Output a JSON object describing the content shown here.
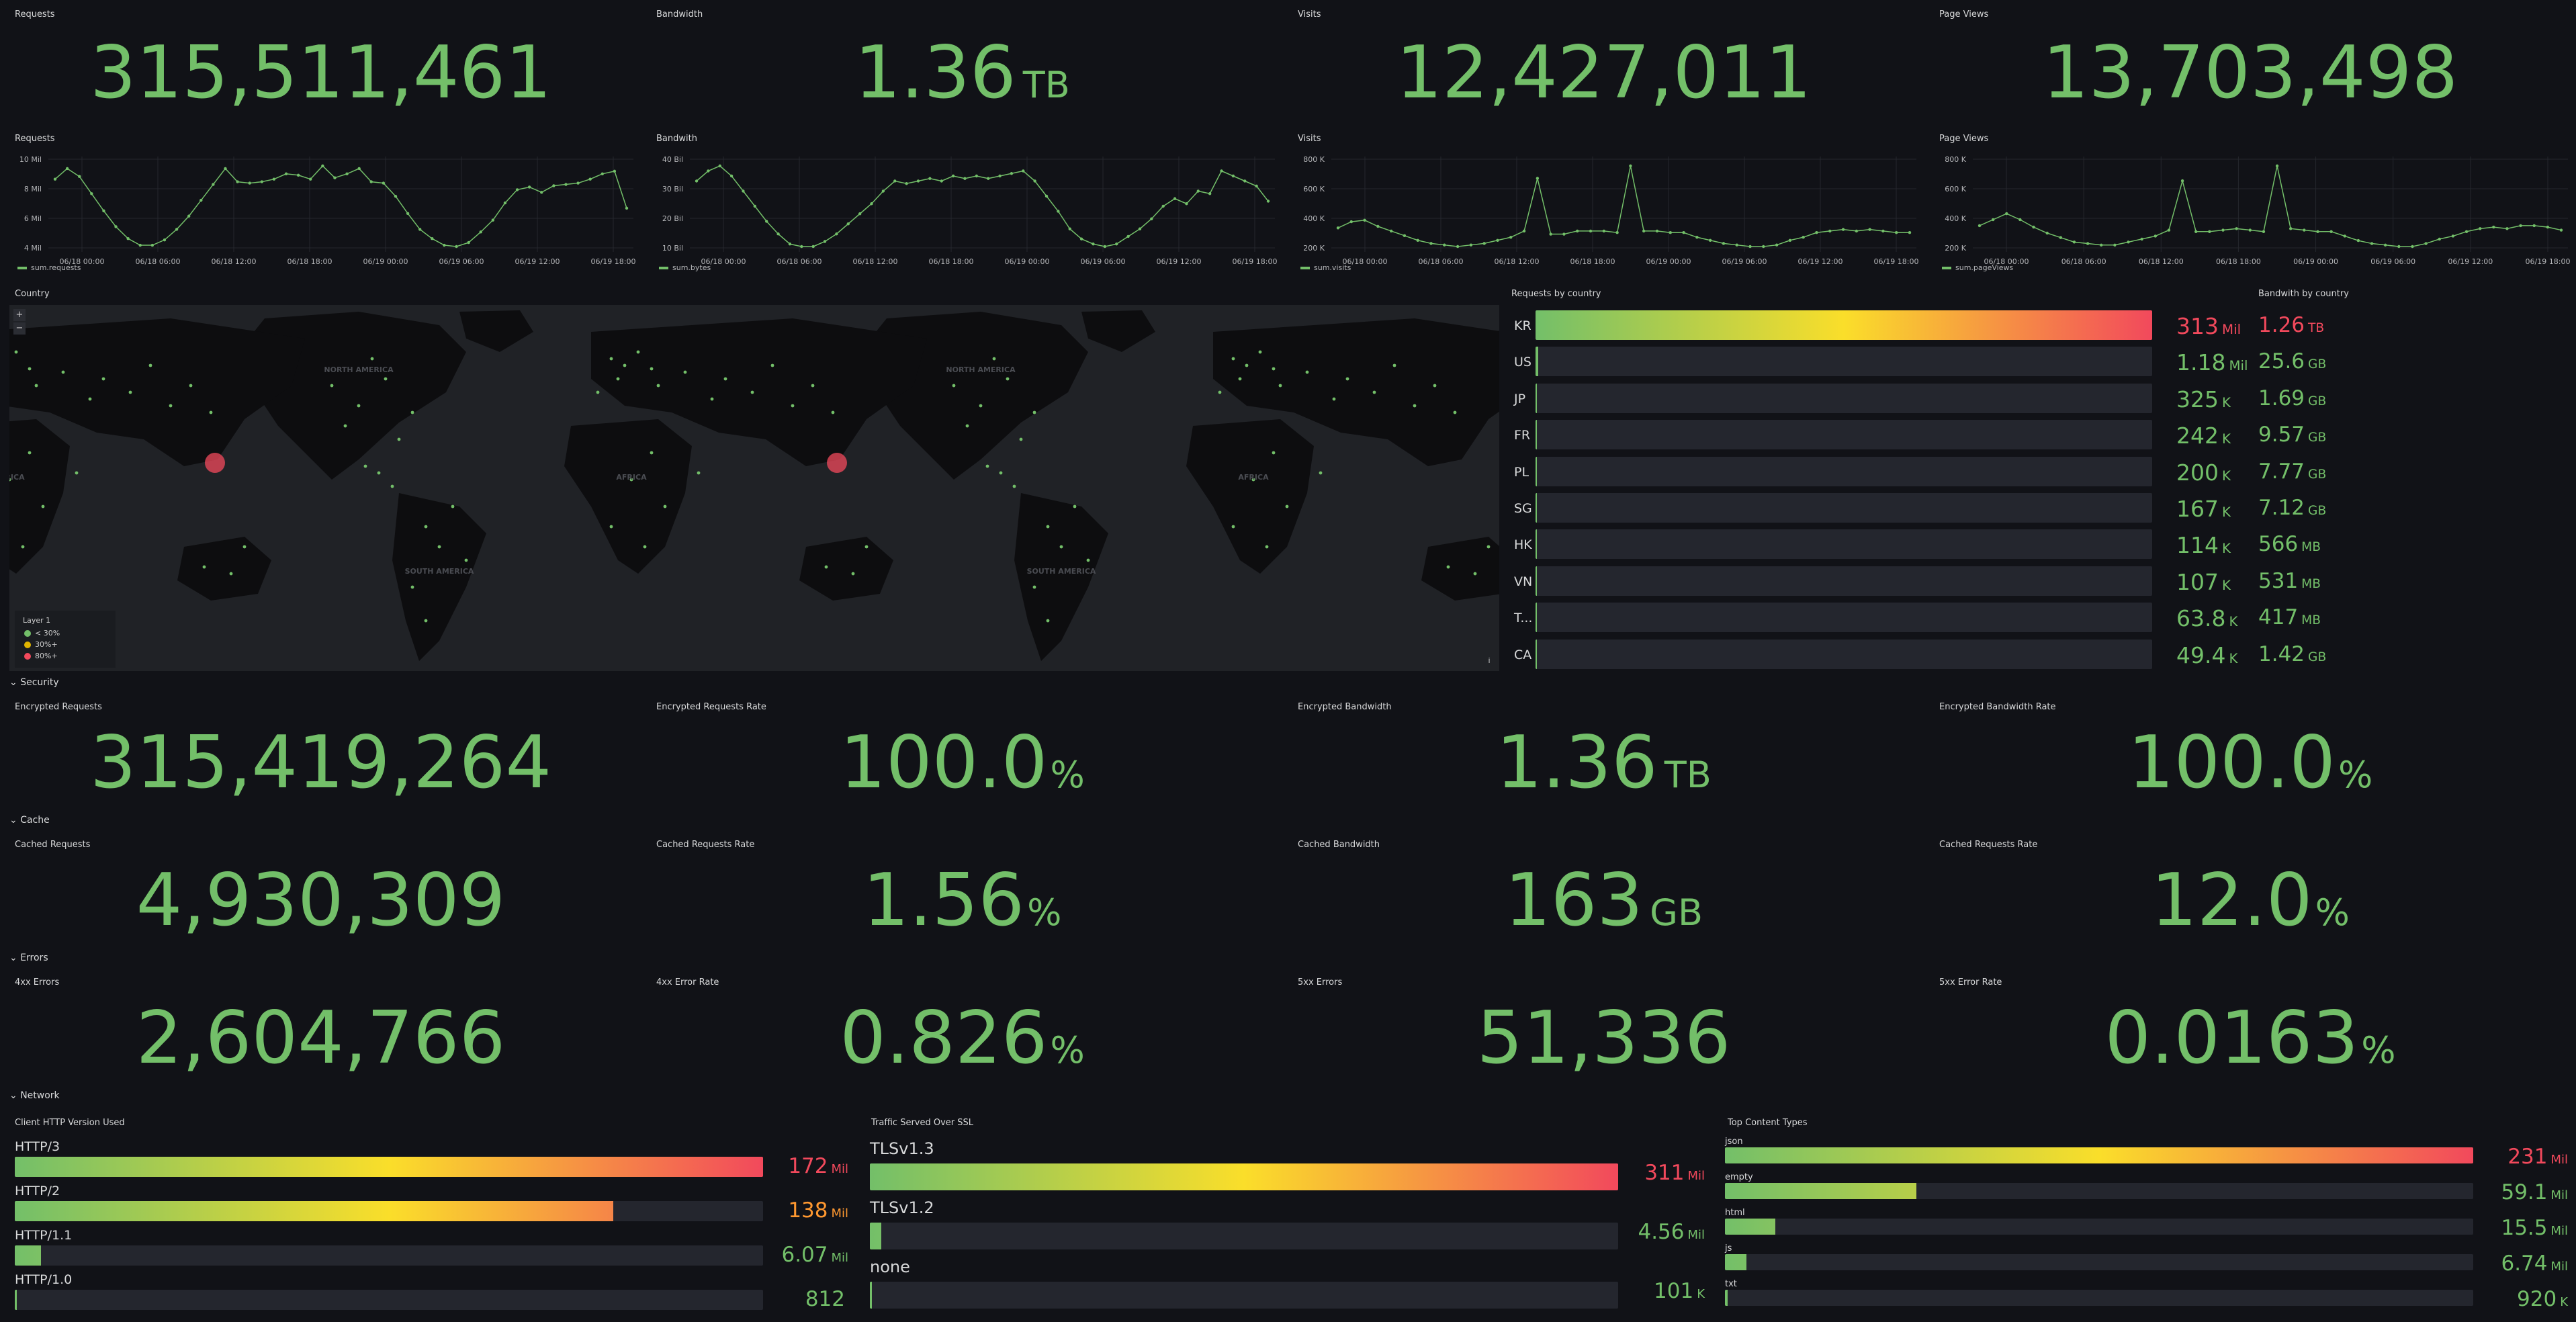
{
  "top_stats": [
    {
      "title": "Requests",
      "value": "315,511,461",
      "unit": ""
    },
    {
      "title": "Bandwidth",
      "value": "1.36",
      "unit": "TB"
    },
    {
      "title": "Visits",
      "value": "12,427,011",
      "unit": ""
    },
    {
      "title": "Page Views",
      "value": "13,703,498",
      "unit": ""
    }
  ],
  "timeseries": [
    {
      "title": "Requests",
      "legend": "sum.requests",
      "yticks": [
        "10 Mil",
        "8 Mil",
        "6 Mil",
        "4 Mil"
      ],
      "values": [
        8.6,
        9.4,
        8.8,
        7.5,
        6.2,
        5.0,
        4.1,
        3.6,
        3.6,
        4.0,
        4.8,
        5.8,
        7.0,
        8.2,
        9.4,
        8.4,
        8.3,
        8.4,
        8.6,
        9.0,
        8.9,
        8.6,
        9.6,
        8.7,
        9.0,
        9.4,
        8.4,
        8.3,
        7.3,
        6.0,
        4.8,
        4.1,
        3.6,
        3.5,
        3.8,
        4.6,
        5.5,
        6.8,
        7.8,
        8.0,
        7.6,
        8.1,
        8.2,
        8.3,
        8.6,
        9.0,
        9.2,
        6.4
      ]
    },
    {
      "title": "Bandwith",
      "legend": "sum.bytes",
      "yticks": [
        "40 Bil",
        "30 Bil",
        "20 Bil",
        "10 Bil"
      ],
      "values": [
        36,
        40,
        42,
        38,
        32,
        26,
        20,
        15,
        11,
        10,
        10,
        12,
        15,
        19,
        23,
        27,
        32,
        36,
        35,
        36,
        37,
        36,
        38,
        37,
        38,
        37,
        38,
        39,
        40,
        36,
        30,
        24,
        17,
        13,
        11,
        10,
        11,
        14,
        17,
        21,
        26,
        29,
        27,
        32,
        31,
        40,
        38,
        36,
        34,
        28
      ]
    },
    {
      "title": "Visits",
      "legend": "sum.visits",
      "yticks": [
        "800 K",
        "600 K",
        "400 K",
        "200 K"
      ],
      "values": [
        320,
        360,
        370,
        330,
        300,
        270,
        240,
        220,
        210,
        200,
        210,
        220,
        240,
        260,
        300,
        640,
        280,
        280,
        300,
        300,
        300,
        290,
        720,
        300,
        300,
        290,
        290,
        260,
        240,
        220,
        210,
        200,
        200,
        210,
        240,
        260,
        290,
        300,
        310,
        300,
        310,
        300,
        290,
        290
      ]
    },
    {
      "title": "Page Views",
      "legend": "sum.pageViews",
      "yticks": [
        "800 K",
        "600 K",
        "400 K",
        "200 K"
      ],
      "values": [
        340,
        380,
        420,
        380,
        330,
        290,
        260,
        230,
        220,
        210,
        210,
        230,
        250,
        270,
        310,
        640,
        300,
        300,
        310,
        320,
        310,
        300,
        740,
        320,
        310,
        300,
        300,
        270,
        240,
        220,
        210,
        200,
        200,
        220,
        250,
        270,
        300,
        320,
        330,
        320,
        340,
        340,
        330,
        310
      ]
    }
  ],
  "ts_xlabels": [
    "06/18 00:00",
    "06/18 06:00",
    "06/18 12:00",
    "06/18 18:00",
    "06/19 00:00",
    "06/19 06:00",
    "06/19 12:00",
    "06/19 18:00"
  ],
  "map": {
    "title": "Country",
    "legend_title": "Layer 1",
    "legend_items": [
      "< 30%",
      "30%+",
      "80%+"
    ],
    "legend_colors": [
      "#73bf69",
      "#e0b400",
      "#f2495c"
    ],
    "continents": [
      "NORTH AMERICA",
      "AFRICA",
      "SOUTH AMERICA"
    ],
    "zoom_in": "+",
    "zoom_out": "−"
  },
  "requests_by_country": {
    "title": "Requests by country",
    "rows": [
      {
        "code": "KR",
        "value": "313",
        "unit": "Mil",
        "pct": 1.0,
        "color": "#f2495c"
      },
      {
        "code": "US",
        "value": "1.18",
        "unit": "Mil",
        "pct": 0.004,
        "color": "#73bf69"
      },
      {
        "code": "JP",
        "value": "325",
        "unit": "K",
        "pct": 0.001,
        "color": "#73bf69"
      },
      {
        "code": "FR",
        "value": "242",
        "unit": "K",
        "pct": 0.001,
        "color": "#73bf69"
      },
      {
        "code": "PL",
        "value": "200",
        "unit": "K",
        "pct": 0.001,
        "color": "#73bf69"
      },
      {
        "code": "SG",
        "value": "167",
        "unit": "K",
        "pct": 0.001,
        "color": "#73bf69"
      },
      {
        "code": "HK",
        "value": "114",
        "unit": "K",
        "pct": 0.0,
        "color": "#73bf69"
      },
      {
        "code": "VN",
        "value": "107",
        "unit": "K",
        "pct": 0.0,
        "color": "#73bf69"
      },
      {
        "code": "T...",
        "value": "63.8",
        "unit": "K",
        "pct": 0.0,
        "color": "#73bf69"
      },
      {
        "code": "CA",
        "value": "49.4",
        "unit": "K",
        "pct": 0.0,
        "color": "#73bf69"
      }
    ]
  },
  "bandwidth_by_country": {
    "title": "Bandwith by country",
    "rows": [
      {
        "value": "1.26",
        "unit": "TB",
        "color": "#f2495c"
      },
      {
        "value": "25.6",
        "unit": "GB",
        "color": "#73bf69"
      },
      {
        "value": "1.69",
        "unit": "GB",
        "color": "#73bf69"
      },
      {
        "value": "9.57",
        "unit": "GB",
        "color": "#73bf69"
      },
      {
        "value": "7.77",
        "unit": "GB",
        "color": "#73bf69"
      },
      {
        "value": "7.12",
        "unit": "GB",
        "color": "#73bf69"
      },
      {
        "value": "566",
        "unit": "MB",
        "color": "#73bf69"
      },
      {
        "value": "531",
        "unit": "MB",
        "color": "#73bf69"
      },
      {
        "value": "417",
        "unit": "MB",
        "color": "#73bf69"
      },
      {
        "value": "1.42",
        "unit": "GB",
        "color": "#73bf69"
      }
    ]
  },
  "sections": {
    "security": {
      "label": "Security",
      "stats": [
        {
          "title": "Encrypted Requests",
          "value": "315,419,264",
          "unit": ""
        },
        {
          "title": "Encrypted Requests Rate",
          "value": "100.0",
          "unit": "%"
        },
        {
          "title": "Encrypted Bandwidth",
          "value": "1.36",
          "unit": "TB"
        },
        {
          "title": "Encrypted Bandwidth Rate",
          "value": "100.0",
          "unit": "%"
        }
      ]
    },
    "cache": {
      "label": "Cache",
      "stats": [
        {
          "title": "Cached Requests",
          "value": "4,930,309",
          "unit": ""
        },
        {
          "title": "Cached Requests Rate",
          "value": "1.56",
          "unit": "%"
        },
        {
          "title": "Cached Bandwidth",
          "value": "163",
          "unit": "GB"
        },
        {
          "title": "Cached Requests Rate",
          "value": "12.0",
          "unit": "%"
        }
      ]
    },
    "errors": {
      "label": "Errors",
      "stats": [
        {
          "title": "4xx Errors",
          "value": "2,604,766",
          "unit": ""
        },
        {
          "title": "4xx Error Rate",
          "value": "0.826",
          "unit": "%"
        },
        {
          "title": "5xx Errors",
          "value": "51,336",
          "unit": ""
        },
        {
          "title": "5xx Error Rate",
          "value": "0.0163",
          "unit": "%"
        }
      ]
    },
    "network": {
      "label": "Network"
    }
  },
  "http_versions": {
    "title": "Client HTTP Version Used",
    "rows": [
      {
        "name": "HTTP/3",
        "value": "172",
        "unit": "Mil",
        "pct": 1.0,
        "color": "#f2495c"
      },
      {
        "name": "HTTP/2",
        "value": "138",
        "unit": "Mil",
        "pct": 0.8,
        "color": "#ff9830"
      },
      {
        "name": "HTTP/1.1",
        "value": "6.07",
        "unit": "Mil",
        "pct": 0.035,
        "color": "#73bf69"
      },
      {
        "name": "HTTP/1.0",
        "value": "812",
        "unit": "",
        "pct": 0.0,
        "color": "#73bf69"
      }
    ]
  },
  "ssl": {
    "title": "Traffic Served Over SSL",
    "rows": [
      {
        "name": "TLSv1.3",
        "value": "311",
        "unit": "Mil",
        "pct": 1.0,
        "color": "#f2495c"
      },
      {
        "name": "TLSv1.2",
        "value": "4.56",
        "unit": "Mil",
        "pct": 0.015,
        "color": "#73bf69"
      },
      {
        "name": "none",
        "value": "101",
        "unit": "K",
        "pct": 0.0,
        "color": "#73bf69"
      }
    ]
  },
  "content_types": {
    "title": "Top Content Types",
    "rows": [
      {
        "name": "json",
        "value": "231",
        "unit": "Mil",
        "pct": 1.0,
        "color": "#f2495c"
      },
      {
        "name": "empty",
        "value": "59.1",
        "unit": "Mil",
        "pct": 0.256,
        "color": "#73bf69"
      },
      {
        "name": "html",
        "value": "15.5",
        "unit": "Mil",
        "pct": 0.067,
        "color": "#73bf69"
      },
      {
        "name": "js",
        "value": "6.74",
        "unit": "Mil",
        "pct": 0.029,
        "color": "#73bf69"
      },
      {
        "name": "txt",
        "value": "920",
        "unit": "K",
        "pct": 0.004,
        "color": "#73bf69"
      }
    ]
  }
}
